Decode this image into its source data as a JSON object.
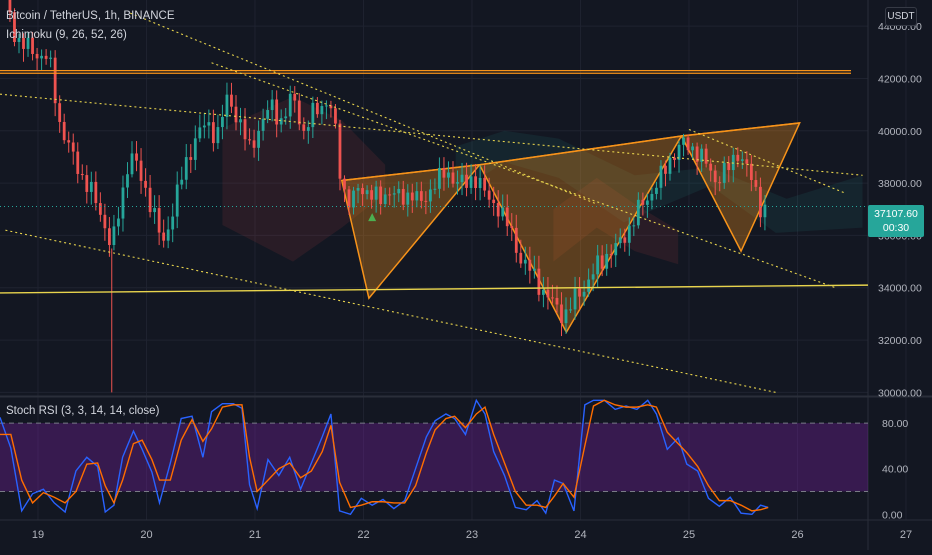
{
  "header": {
    "symbol_label": "Bitcoin / TetherUS, 1h, BINANCE",
    "indicator_label": "Ichimoku (9, 26, 52, 26)",
    "currency_button": "USDT"
  },
  "oscillator": {
    "label": "Stoch RSI (3, 3, 14, 14, close)"
  },
  "last_price": {
    "value": "37107.60",
    "countdown": "00:30"
  },
  "colors": {
    "background": "#131722",
    "up_candle": "#26a69a",
    "down_candle": "#ef5350",
    "pattern": "#f7931a",
    "trendline": "#e8d44d",
    "stoch_k": "#2962ff",
    "stoch_d": "#ff6d00",
    "stoch_band": "#7b1fa2"
  },
  "chart_data": [
    {
      "type": "candlestick",
      "symbol": "Bitcoin / TetherUS",
      "interval": "1h",
      "exchange": "BINANCE",
      "y_axis_ticks": [
        30000,
        32000,
        34000,
        36000,
        38000,
        40000,
        42000,
        44000
      ],
      "y_tick_labels": [
        "30000.00",
        "32000.00",
        "34000.00",
        "36000.00",
        "38000.00",
        "40000.00",
        "42000.00",
        "44000.00"
      ],
      "ylim": [
        29900,
        45000
      ],
      "x_axis_ticks": [
        "19",
        "20",
        "21",
        "22",
        "23",
        "24",
        "25",
        "26",
        "27"
      ],
      "x_tick_positions_day": [
        19,
        20,
        21,
        22,
        23,
        24,
        25,
        26,
        27
      ],
      "xlim_day": [
        18.65,
        26.65
      ],
      "last_price": 37107.6,
      "close_path": [
        [
          18.7,
          45000
        ],
        [
          18.8,
          43500
        ],
        [
          18.9,
          43200
        ],
        [
          19.0,
          42900
        ],
        [
          19.1,
          42800
        ],
        [
          19.2,
          40300
        ],
        [
          19.3,
          39200
        ],
        [
          19.4,
          38300
        ],
        [
          19.5,
          37600
        ],
        [
          19.6,
          36600
        ],
        [
          19.68,
          35500
        ],
        [
          19.75,
          37000
        ],
        [
          19.85,
          39200
        ],
        [
          19.95,
          38200
        ],
        [
          20.05,
          37100
        ],
        [
          20.15,
          35600
        ],
        [
          20.25,
          37100
        ],
        [
          20.35,
          38600
        ],
        [
          20.45,
          39700
        ],
        [
          20.55,
          40300
        ],
        [
          20.65,
          39800
        ],
        [
          20.75,
          41300
        ],
        [
          20.85,
          40400
        ],
        [
          20.95,
          39300
        ],
        [
          21.05,
          40200
        ],
        [
          21.15,
          41000
        ],
        [
          21.25,
          40300
        ],
        [
          21.35,
          41400
        ],
        [
          21.45,
          39900
        ],
        [
          21.55,
          40800
        ],
        [
          21.65,
          41100
        ],
        [
          21.72,
          40700
        ],
        [
          21.8,
          37900
        ],
        [
          21.88,
          37200
        ],
        [
          21.96,
          37800
        ],
        [
          22.05,
          37700
        ],
        [
          22.15,
          37300
        ],
        [
          22.25,
          37800
        ],
        [
          22.35,
          37300
        ],
        [
          22.45,
          37700
        ],
        [
          22.55,
          37100
        ],
        [
          22.65,
          38100
        ],
        [
          22.75,
          38300
        ],
        [
          22.85,
          38200
        ],
        [
          22.95,
          37900
        ],
        [
          23.05,
          38300
        ],
        [
          23.15,
          37300
        ],
        [
          23.25,
          37100
        ],
        [
          23.35,
          36200
        ],
        [
          23.45,
          35100
        ],
        [
          23.55,
          34600
        ],
        [
          23.65,
          33900
        ],
        [
          23.75,
          33400
        ],
        [
          23.85,
          32900
        ],
        [
          23.95,
          33600
        ],
        [
          24.05,
          34100
        ],
        [
          24.15,
          34800
        ],
        [
          24.25,
          35300
        ],
        [
          24.35,
          35600
        ],
        [
          24.45,
          36300
        ],
        [
          24.55,
          37100
        ],
        [
          24.65,
          37600
        ],
        [
          24.75,
          38300
        ],
        [
          24.85,
          39100
        ],
        [
          24.95,
          39500
        ],
        [
          25.05,
          39300
        ],
        [
          25.15,
          38800
        ],
        [
          25.25,
          38100
        ],
        [
          25.35,
          38500
        ],
        [
          25.45,
          39200
        ],
        [
          25.55,
          38400
        ],
        [
          25.62,
          37700
        ],
        [
          25.68,
          36800
        ],
        [
          25.73,
          37107.6
        ]
      ],
      "horizontal_levels": [
        {
          "price": 42300,
          "color": "pattern"
        },
        {
          "price": 42200,
          "color": "pattern"
        }
      ],
      "trendlines": [
        {
          "style": "solid",
          "color": "trendline",
          "points": [
            [
              18.65,
              33800
            ],
            [
              26.65,
              34100
            ]
          ]
        },
        {
          "style": "dotted",
          "color": "trendline",
          "points": [
            [
              18.65,
              41400
            ],
            [
              26.6,
              38300
            ]
          ]
        },
        {
          "style": "dotted",
          "color": "trendline",
          "points": [
            [
              19.85,
              44500
            ],
            [
              24.15,
              37200
            ]
          ]
        },
        {
          "style": "dotted",
          "color": "trendline",
          "points": [
            [
              20.6,
              42600
            ],
            [
              26.35,
              34000
            ]
          ]
        },
        {
          "style": "dotted",
          "color": "trendline",
          "points": [
            [
              25.0,
              40050
            ],
            [
              26.45,
              37600
            ]
          ]
        },
        {
          "style": "dotted",
          "color": "trendline",
          "points": [
            [
              18.7,
              36200
            ],
            [
              25.8,
              30000
            ]
          ]
        }
      ],
      "harmonic_triangles": [
        {
          "points": [
            [
              21.8,
              38100
            ],
            [
              22.05,
              33600
            ],
            [
              23.07,
              38700
            ]
          ]
        },
        {
          "points": [
            [
              23.07,
              38700
            ],
            [
              23.87,
              32300
            ],
            [
              24.93,
              39800
            ]
          ]
        },
        {
          "points": [
            [
              24.93,
              39800
            ],
            [
              25.48,
              35400
            ],
            [
              26.02,
              40300
            ]
          ]
        }
      ],
      "pattern_neckline": {
        "points": [
          [
            21.8,
            38100
          ],
          [
            23.07,
            38700
          ],
          [
            24.93,
            39800
          ],
          [
            26.02,
            40300
          ]
        ]
      },
      "signal_marker": {
        "day": 22.08,
        "price": 36700,
        "shape": "triangle-up"
      }
    },
    {
      "type": "line",
      "title": "Stoch RSI (3, 3, 14, 14, close)",
      "y_axis_ticks": [
        0,
        40,
        80
      ],
      "y_tick_labels": [
        "0.00",
        "40.00",
        "80.00"
      ],
      "ylim": [
        -5,
        102
      ],
      "overbought": 80,
      "oversold": 20,
      "series": [
        {
          "color": "stoch_k",
          "points": [
            [
              18.65,
              85
            ],
            [
              18.75,
              58
            ],
            [
              18.85,
              3
            ],
            [
              18.95,
              18
            ],
            [
              19.05,
              22
            ],
            [
              19.15,
              10
            ],
            [
              19.25,
              2
            ],
            [
              19.35,
              38
            ],
            [
              19.45,
              50
            ],
            [
              19.55,
              42
            ],
            [
              19.62,
              2
            ],
            [
              19.7,
              8
            ],
            [
              19.78,
              50
            ],
            [
              19.88,
              73
            ],
            [
              19.96,
              57
            ],
            [
              20.05,
              37
            ],
            [
              20.12,
              10
            ],
            [
              20.22,
              45
            ],
            [
              20.32,
              84
            ],
            [
              20.42,
              86
            ],
            [
              20.52,
              50
            ],
            [
              20.6,
              90
            ],
            [
              20.7,
              97
            ],
            [
              20.8,
              97
            ],
            [
              20.88,
              93
            ],
            [
              20.95,
              26
            ],
            [
              21.02,
              5
            ],
            [
              21.12,
              48
            ],
            [
              21.22,
              34
            ],
            [
              21.32,
              50
            ],
            [
              21.42,
              22
            ],
            [
              21.52,
              45
            ],
            [
              21.62,
              68
            ],
            [
              21.7,
              88
            ],
            [
              21.78,
              3
            ],
            [
              21.88,
              0
            ],
            [
              21.98,
              14
            ],
            [
              22.08,
              8
            ],
            [
              22.18,
              13
            ],
            [
              22.28,
              5
            ],
            [
              22.38,
              12
            ],
            [
              22.48,
              40
            ],
            [
              22.58,
              68
            ],
            [
              22.66,
              82
            ],
            [
              22.76,
              88
            ],
            [
              22.84,
              84
            ],
            [
              22.94,
              70
            ],
            [
              23.04,
              100
            ],
            [
              23.12,
              88
            ],
            [
              23.2,
              55
            ],
            [
              23.3,
              34
            ],
            [
              23.4,
              6
            ],
            [
              23.5,
              4
            ],
            [
              23.6,
              12
            ],
            [
              23.68,
              1
            ],
            [
              23.76,
              30
            ],
            [
              23.84,
              27
            ],
            [
              23.94,
              3
            ],
            [
              24.04,
              96
            ],
            [
              24.12,
              100
            ],
            [
              24.22,
              100
            ],
            [
              24.32,
              92
            ],
            [
              24.42,
              95
            ],
            [
              24.52,
              92
            ],
            [
              24.62,
              100
            ],
            [
              24.7,
              88
            ],
            [
              24.8,
              57
            ],
            [
              24.9,
              67
            ],
            [
              24.98,
              44
            ],
            [
              25.08,
              38
            ],
            [
              25.18,
              14
            ],
            [
              25.28,
              7
            ],
            [
              25.38,
              15
            ],
            [
              25.48,
              1
            ],
            [
              25.58,
              0
            ],
            [
              25.66,
              8
            ],
            [
              25.73,
              6
            ]
          ]
        },
        {
          "color": "stoch_d",
          "points": [
            [
              18.65,
              70
            ],
            [
              18.75,
              70
            ],
            [
              18.85,
              30
            ],
            [
              18.95,
              10
            ],
            [
              19.05,
              19
            ],
            [
              19.15,
              15
            ],
            [
              19.25,
              10
            ],
            [
              19.35,
              20
            ],
            [
              19.45,
              44
            ],
            [
              19.55,
              45
            ],
            [
              19.62,
              25
            ],
            [
              19.7,
              10
            ],
            [
              19.78,
              30
            ],
            [
              19.88,
              62
            ],
            [
              19.96,
              65
            ],
            [
              20.05,
              48
            ],
            [
              20.12,
              30
            ],
            [
              20.22,
              30
            ],
            [
              20.32,
              65
            ],
            [
              20.42,
              83
            ],
            [
              20.52,
              64
            ],
            [
              20.6,
              75
            ],
            [
              20.7,
              94
            ],
            [
              20.8,
              96
            ],
            [
              20.88,
              96
            ],
            [
              20.95,
              50
            ],
            [
              21.02,
              20
            ],
            [
              21.12,
              30
            ],
            [
              21.22,
              40
            ],
            [
              21.32,
              45
            ],
            [
              21.42,
              32
            ],
            [
              21.52,
              38
            ],
            [
              21.62,
              55
            ],
            [
              21.7,
              78
            ],
            [
              21.78,
              28
            ],
            [
              21.88,
              6
            ],
            [
              21.98,
              8
            ],
            [
              22.08,
              11
            ],
            [
              22.18,
              11
            ],
            [
              22.28,
              10
            ],
            [
              22.38,
              10
            ],
            [
              22.48,
              25
            ],
            [
              22.58,
              54
            ],
            [
              22.66,
              74
            ],
            [
              22.76,
              84
            ],
            [
              22.84,
              86
            ],
            [
              22.94,
              76
            ],
            [
              23.04,
              88
            ],
            [
              23.12,
              94
            ],
            [
              23.2,
              70
            ],
            [
              23.3,
              45
            ],
            [
              23.4,
              20
            ],
            [
              23.5,
              8
            ],
            [
              23.6,
              8
            ],
            [
              23.68,
              6
            ],
            [
              23.76,
              16
            ],
            [
              23.84,
              27
            ],
            [
              23.94,
              15
            ],
            [
              24.04,
              60
            ],
            [
              24.12,
              95
            ],
            [
              24.22,
              100
            ],
            [
              24.32,
              96
            ],
            [
              24.42,
              94
            ],
            [
              24.52,
              94
            ],
            [
              24.62,
              96
            ],
            [
              24.7,
              94
            ],
            [
              24.8,
              72
            ],
            [
              24.9,
              62
            ],
            [
              24.98,
              54
            ],
            [
              25.08,
              42
            ],
            [
              25.18,
              25
            ],
            [
              25.28,
              12
            ],
            [
              25.38,
              12
            ],
            [
              25.48,
              8
            ],
            [
              25.58,
              3
            ],
            [
              25.66,
              4
            ],
            [
              25.73,
              6
            ]
          ]
        }
      ]
    }
  ]
}
